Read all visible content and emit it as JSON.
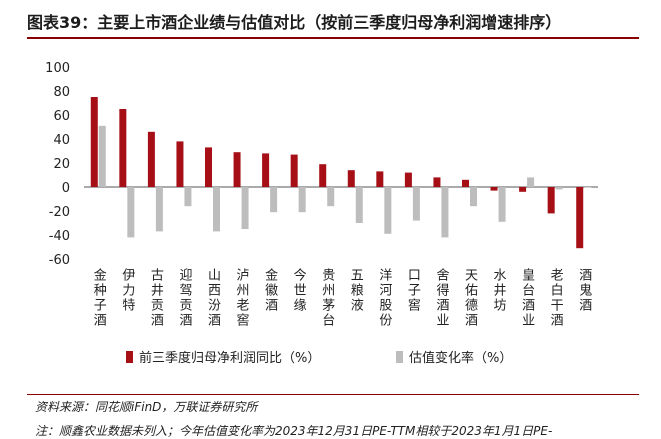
{
  "title": "图表39：主要上市酒企业绩与估值对比（按前三季度归母净利润增速排序）",
  "source": "资料来源：同花顺iFinD，万联证券研究所",
  "note": "注：顺鑫农业数据未列入；今年估值变化率为2023年12月31日PE-TTM相较于2023年1月1日PE-",
  "colors": {
    "primary": "#a50f15",
    "secondary": "#bdbdbd",
    "rule": "#8b0000"
  },
  "chart_data": {
    "type": "bar",
    "categories": [
      "金种子酒",
      "伊力特",
      "古井贡酒",
      "迎驾贡酒",
      "山西汾酒",
      "泸州老窖",
      "金徽酒",
      "今世缘",
      "贵州茅台",
      "五粮液",
      "洋河股份",
      "口子窖",
      "舍得酒业",
      "天佑德酒",
      "水井坊",
      "皇台酒业",
      "老白干酒",
      "酒鬼酒"
    ],
    "series": [
      {
        "name": "前三季度归母净利润同比（%）",
        "values": [
          75,
          65,
          46,
          38,
          33,
          29,
          28,
          27,
          19,
          14,
          13,
          12,
          8,
          6,
          -3,
          -4,
          -22,
          -51
        ]
      },
      {
        "name": "估值变化率（%）",
        "values": [
          51,
          -42,
          -37,
          -16,
          -37,
          -35,
          -21,
          -21,
          -16,
          -30,
          -39,
          -28,
          -42,
          -16,
          -29,
          8,
          -2,
          0
        ]
      }
    ],
    "yticks": [
      100,
      80,
      60,
      40,
      20,
      0,
      -20,
      -40,
      -60
    ],
    "ylim": [
      -60,
      100
    ],
    "legend_position": "bottom"
  }
}
